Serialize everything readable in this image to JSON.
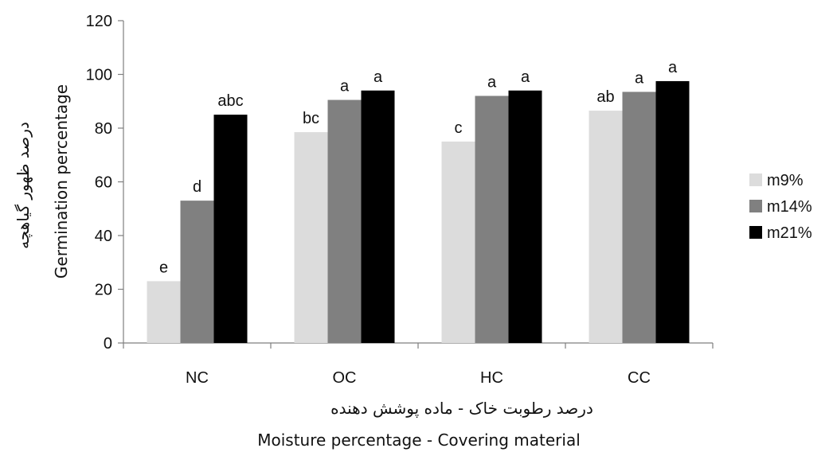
{
  "chart_data": {
    "type": "bar",
    "categories": [
      "NC",
      "OC",
      "HC",
      "CC"
    ],
    "series": [
      {
        "name": "m9%",
        "color": "#dcdcdc",
        "values": [
          23,
          78.5,
          75,
          86.5
        ],
        "labels": [
          "e",
          "bc",
          "c",
          "ab"
        ]
      },
      {
        "name": "m14%",
        "color": "#808080",
        "values": [
          53,
          90.5,
          92,
          93.5
        ],
        "labels": [
          "d",
          "a",
          "a",
          "a"
        ]
      },
      {
        "name": "m21%",
        "color": "#000000",
        "values": [
          85,
          94,
          94,
          97.5
        ],
        "labels": [
          "abc",
          "a",
          "a",
          "a"
        ]
      }
    ],
    "ylim": [
      0,
      120
    ],
    "yticks": [
      0,
      20,
      40,
      60,
      80,
      100,
      120
    ],
    "ylabel_fa": "درصد ظهور گیاهچه",
    "ylabel": "Germination percentage",
    "xlabel_fa": "درصد رطوبت خاک - ماده پوشش دهنده",
    "xlabel": "Moisture percentage - Covering material",
    "grid": false,
    "legend": "right"
  }
}
